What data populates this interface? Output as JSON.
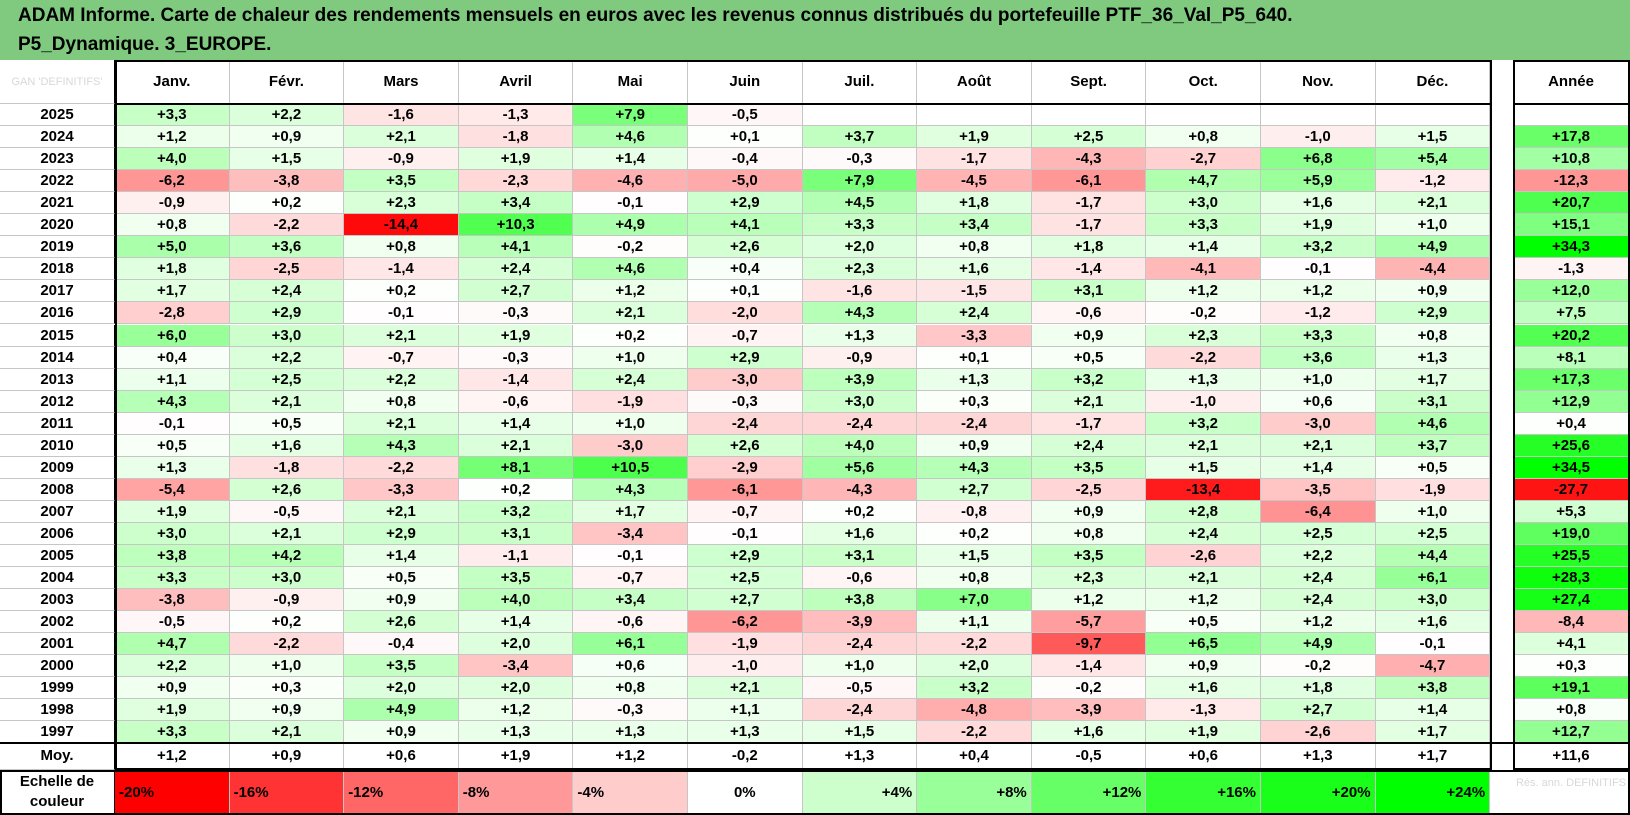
{
  "title": {
    "line1": "ADAM Informe. Carte de chaleur des rendements mensuels en euros avec les revenus connus distribués du portefeuille PTF_36_Val_P5_640.",
    "line2": "P5_Dynamique. 3_EUROPE."
  },
  "chart_data": {
    "type": "heatmap",
    "corner_label": "GAN 'DEFINITIFS'",
    "columns": [
      "Janv.",
      "Févr.",
      "Mars",
      "Avril",
      "Mai",
      "Juin",
      "Juil.",
      "Août",
      "Sept.",
      "Oct.",
      "Nov.",
      "Déc."
    ],
    "annual_header": "Année",
    "rows": [
      {
        "year": "2025",
        "values": [
          "+3,3",
          "+2,2",
          "-1,6",
          "-1,3",
          "+7,9",
          "-0,5",
          "",
          "",
          "",
          "",
          "",
          ""
        ],
        "annual": ""
      },
      {
        "year": "2024",
        "values": [
          "+1,2",
          "+0,9",
          "+2,1",
          "-1,8",
          "+4,6",
          "+0,1",
          "+3,7",
          "+1,9",
          "+2,5",
          "+0,8",
          "-1,0",
          "+1,5"
        ],
        "annual": "+17,8"
      },
      {
        "year": "2023",
        "values": [
          "+4,0",
          "+1,5",
          "-0,9",
          "+1,9",
          "+1,4",
          "-0,4",
          "-0,3",
          "-1,7",
          "-4,3",
          "-2,7",
          "+6,8",
          "+5,4"
        ],
        "annual": "+10,8"
      },
      {
        "year": "2022",
        "values": [
          "-6,2",
          "-3,8",
          "+3,5",
          "-2,3",
          "-4,6",
          "-5,0",
          "+7,9",
          "-4,5",
          "-6,1",
          "+4,7",
          "+5,9",
          "-1,2"
        ],
        "annual": "-12,3"
      },
      {
        "year": "2021",
        "values": [
          "-0,9",
          "+0,2",
          "+2,3",
          "+3,4",
          "-0,1",
          "+2,9",
          "+4,5",
          "+1,8",
          "-1,7",
          "+3,0",
          "+1,6",
          "+2,1"
        ],
        "annual": "+20,7"
      },
      {
        "year": "2020",
        "values": [
          "+0,8",
          "-2,2",
          "-14,4",
          "+10,3",
          "+4,9",
          "+4,1",
          "+3,3",
          "+3,4",
          "-1,7",
          "+3,3",
          "+1,9",
          "+1,0"
        ],
        "annual": "+15,1"
      },
      {
        "year": "2019",
        "values": [
          "+5,0",
          "+3,6",
          "+0,8",
          "+4,1",
          "-0,2",
          "+2,6",
          "+2,0",
          "+0,8",
          "+1,8",
          "+1,4",
          "+3,2",
          "+4,9"
        ],
        "annual": "+34,3"
      },
      {
        "year": "2018",
        "values": [
          "+1,8",
          "-2,5",
          "-1,4",
          "+2,4",
          "+4,6",
          "+0,4",
          "+2,3",
          "+1,6",
          "-1,4",
          "-4,1",
          "-0,1",
          "-4,4"
        ],
        "annual": "-1,3"
      },
      {
        "year": "2017",
        "values": [
          "+1,7",
          "+2,4",
          "+0,2",
          "+2,7",
          "+1,2",
          "+0,1",
          "-1,6",
          "-1,5",
          "+3,1",
          "+1,2",
          "+1,2",
          "+0,9"
        ],
        "annual": "+12,0"
      },
      {
        "year": "2016",
        "values": [
          "-2,8",
          "+2,9",
          "-0,1",
          "-0,3",
          "+2,1",
          "-2,0",
          "+4,3",
          "+2,4",
          "-0,6",
          "-0,2",
          "-1,2",
          "+2,9"
        ],
        "annual": "+7,5"
      },
      {
        "year": "2015",
        "values": [
          "+6,0",
          "+3,0",
          "+2,1",
          "+1,9",
          "+0,2",
          "-0,7",
          "+1,3",
          "-3,3",
          "+0,9",
          "+2,3",
          "+3,3",
          "+0,8"
        ],
        "annual": "+20,2"
      },
      {
        "year": "2014",
        "values": [
          "+0,4",
          "+2,2",
          "-0,7",
          "-0,3",
          "+1,0",
          "+2,9",
          "-0,9",
          "+0,1",
          "+0,5",
          "-2,2",
          "+3,6",
          "+1,3"
        ],
        "annual": "+8,1"
      },
      {
        "year": "2013",
        "values": [
          "+1,1",
          "+2,5",
          "+2,2",
          "-1,4",
          "+2,4",
          "-3,0",
          "+3,9",
          "+1,3",
          "+3,2",
          "+1,3",
          "+1,0",
          "+1,7"
        ],
        "annual": "+17,3"
      },
      {
        "year": "2012",
        "values": [
          "+4,3",
          "+2,1",
          "+0,8",
          "-0,6",
          "-1,9",
          "-0,3",
          "+3,0",
          "+0,3",
          "+2,1",
          "-1,0",
          "+0,6",
          "+3,1"
        ],
        "annual": "+12,9"
      },
      {
        "year": "2011",
        "values": [
          "-0,1",
          "+0,5",
          "+2,1",
          "+1,4",
          "+1,0",
          "-2,4",
          "-2,4",
          "-2,4",
          "-1,7",
          "+3,2",
          "-3,0",
          "+4,6"
        ],
        "annual": "+0,4"
      },
      {
        "year": "2010",
        "values": [
          "+0,5",
          "+1,6",
          "+4,3",
          "+2,1",
          "-3,0",
          "+2,6",
          "+4,0",
          "+0,9",
          "+2,4",
          "+2,1",
          "+2,1",
          "+3,7"
        ],
        "annual": "+25,6"
      },
      {
        "year": "2009",
        "values": [
          "+1,3",
          "-1,8",
          "-2,2",
          "+8,1",
          "+10,5",
          "-2,9",
          "+5,6",
          "+4,3",
          "+3,5",
          "+1,5",
          "+1,4",
          "+0,5"
        ],
        "annual": "+34,5"
      },
      {
        "year": "2008",
        "values": [
          "-5,4",
          "+2,6",
          "-3,3",
          "+0,2",
          "+4,3",
          "-6,1",
          "-4,3",
          "+2,7",
          "-2,5",
          "-13,4",
          "-3,5",
          "-1,9"
        ],
        "annual": "-27,7"
      },
      {
        "year": "2007",
        "values": [
          "+1,9",
          "-0,5",
          "+2,1",
          "+3,2",
          "+1,7",
          "-0,7",
          "+0,2",
          "-0,8",
          "+0,9",
          "+2,8",
          "-6,4",
          "+1,0"
        ],
        "annual": "+5,3"
      },
      {
        "year": "2006",
        "values": [
          "+3,0",
          "+2,1",
          "+2,9",
          "+3,1",
          "-3,4",
          "-0,1",
          "+1,6",
          "+0,2",
          "+0,8",
          "+2,4",
          "+2,5",
          "+2,5"
        ],
        "annual": "+19,0"
      },
      {
        "year": "2005",
        "values": [
          "+3,8",
          "+4,2",
          "+1,4",
          "-1,1",
          "-0,1",
          "+2,9",
          "+3,1",
          "+1,5",
          "+3,5",
          "-2,6",
          "+2,2",
          "+4,4"
        ],
        "annual": "+25,5"
      },
      {
        "year": "2004",
        "values": [
          "+3,3",
          "+3,0",
          "+0,5",
          "+3,5",
          "-0,7",
          "+2,5",
          "-0,6",
          "+0,8",
          "+2,3",
          "+2,1",
          "+2,4",
          "+6,1"
        ],
        "annual": "+28,3"
      },
      {
        "year": "2003",
        "values": [
          "-3,8",
          "-0,9",
          "+0,9",
          "+4,0",
          "+3,4",
          "+2,7",
          "+3,8",
          "+7,0",
          "+1,2",
          "+1,2",
          "+2,4",
          "+3,0"
        ],
        "annual": "+27,4"
      },
      {
        "year": "2002",
        "values": [
          "-0,5",
          "+0,2",
          "+2,6",
          "+1,4",
          "-0,6",
          "-6,2",
          "-3,9",
          "+1,1",
          "-5,7",
          "+0,5",
          "+1,2",
          "+1,6"
        ],
        "annual": "-8,4"
      },
      {
        "year": "2001",
        "values": [
          "+4,7",
          "-2,2",
          "-0,4",
          "+2,0",
          "+6,1",
          "-1,9",
          "-2,4",
          "-2,2",
          "-9,7",
          "+6,5",
          "+4,9",
          "-0,1"
        ],
        "annual": "+4,1"
      },
      {
        "year": "2000",
        "values": [
          "+2,2",
          "+1,0",
          "+3,5",
          "-3,4",
          "+0,6",
          "-1,0",
          "+1,0",
          "+2,0",
          "-1,4",
          "+0,9",
          "-0,2",
          "-4,7"
        ],
        "annual": "+0,3"
      },
      {
        "year": "1999",
        "values": [
          "+0,9",
          "+0,3",
          "+2,0",
          "+2,0",
          "+0,8",
          "+2,1",
          "-0,5",
          "+3,2",
          "-0,2",
          "+1,6",
          "+1,8",
          "+3,8"
        ],
        "annual": "+19,1"
      },
      {
        "year": "1998",
        "values": [
          "+1,9",
          "+0,9",
          "+4,9",
          "+1,2",
          "-0,3",
          "+1,1",
          "-2,4",
          "-4,8",
          "-3,9",
          "-1,3",
          "+2,7",
          "+1,4"
        ],
        "annual": "+0,8"
      },
      {
        "year": "1997",
        "values": [
          "+3,3",
          "+2,1",
          "+0,9",
          "+1,3",
          "+1,3",
          "+1,3",
          "+1,5",
          "-2,2",
          "+1,6",
          "+1,9",
          "-2,6",
          "+1,7"
        ],
        "annual": "+12,7"
      }
    ],
    "average": {
      "label": "Moy.",
      "values": [
        "+1,2",
        "+0,9",
        "+0,6",
        "+1,9",
        "+1,2",
        "-0,2",
        "+1,3",
        "+0,4",
        "-0,5",
        "+0,6",
        "+1,3",
        "+1,7"
      ],
      "annual": "+11,6"
    },
    "scale": {
      "label": "Echelle de couleur",
      "steps": [
        {
          "label": "-20%",
          "value": -20,
          "align": "left",
          "color": "#ff0000"
        },
        {
          "label": "-16%",
          "value": -16,
          "align": "left",
          "color": "#ff3333"
        },
        {
          "label": "-12%",
          "value": -12,
          "align": "left",
          "color": "#ff6666"
        },
        {
          "label": "-8%",
          "value": -8,
          "align": "left",
          "color": "#ff9999"
        },
        {
          "label": "-4%",
          "value": -4,
          "align": "left",
          "color": "#ffcccc"
        },
        {
          "label": "0%",
          "value": 0,
          "align": "center",
          "color": "#ffffff"
        },
        {
          "label": "+4%",
          "value": 4,
          "align": "right",
          "color": "#ccffcc"
        },
        {
          "label": "+8%",
          "value": 8,
          "align": "right",
          "color": "#99ff99"
        },
        {
          "label": "+12%",
          "value": 12,
          "align": "right",
          "color": "#66ff66"
        },
        {
          "label": "+16%",
          "value": 16,
          "align": "right",
          "color": "#33ff33"
        },
        {
          "label": "+20%",
          "value": 20,
          "align": "right",
          "color": "#1aff1a"
        },
        {
          "label": "+24%",
          "value": 24,
          "align": "right",
          "color": "#00ff00"
        }
      ],
      "annual_note": "Rés. ann. DEFINITIFS"
    },
    "colors": {
      "title_bg": "#7fca7f",
      "negative": "#ff0000",
      "positive": "#00ff00",
      "neutral": "#ffffff"
    }
  }
}
